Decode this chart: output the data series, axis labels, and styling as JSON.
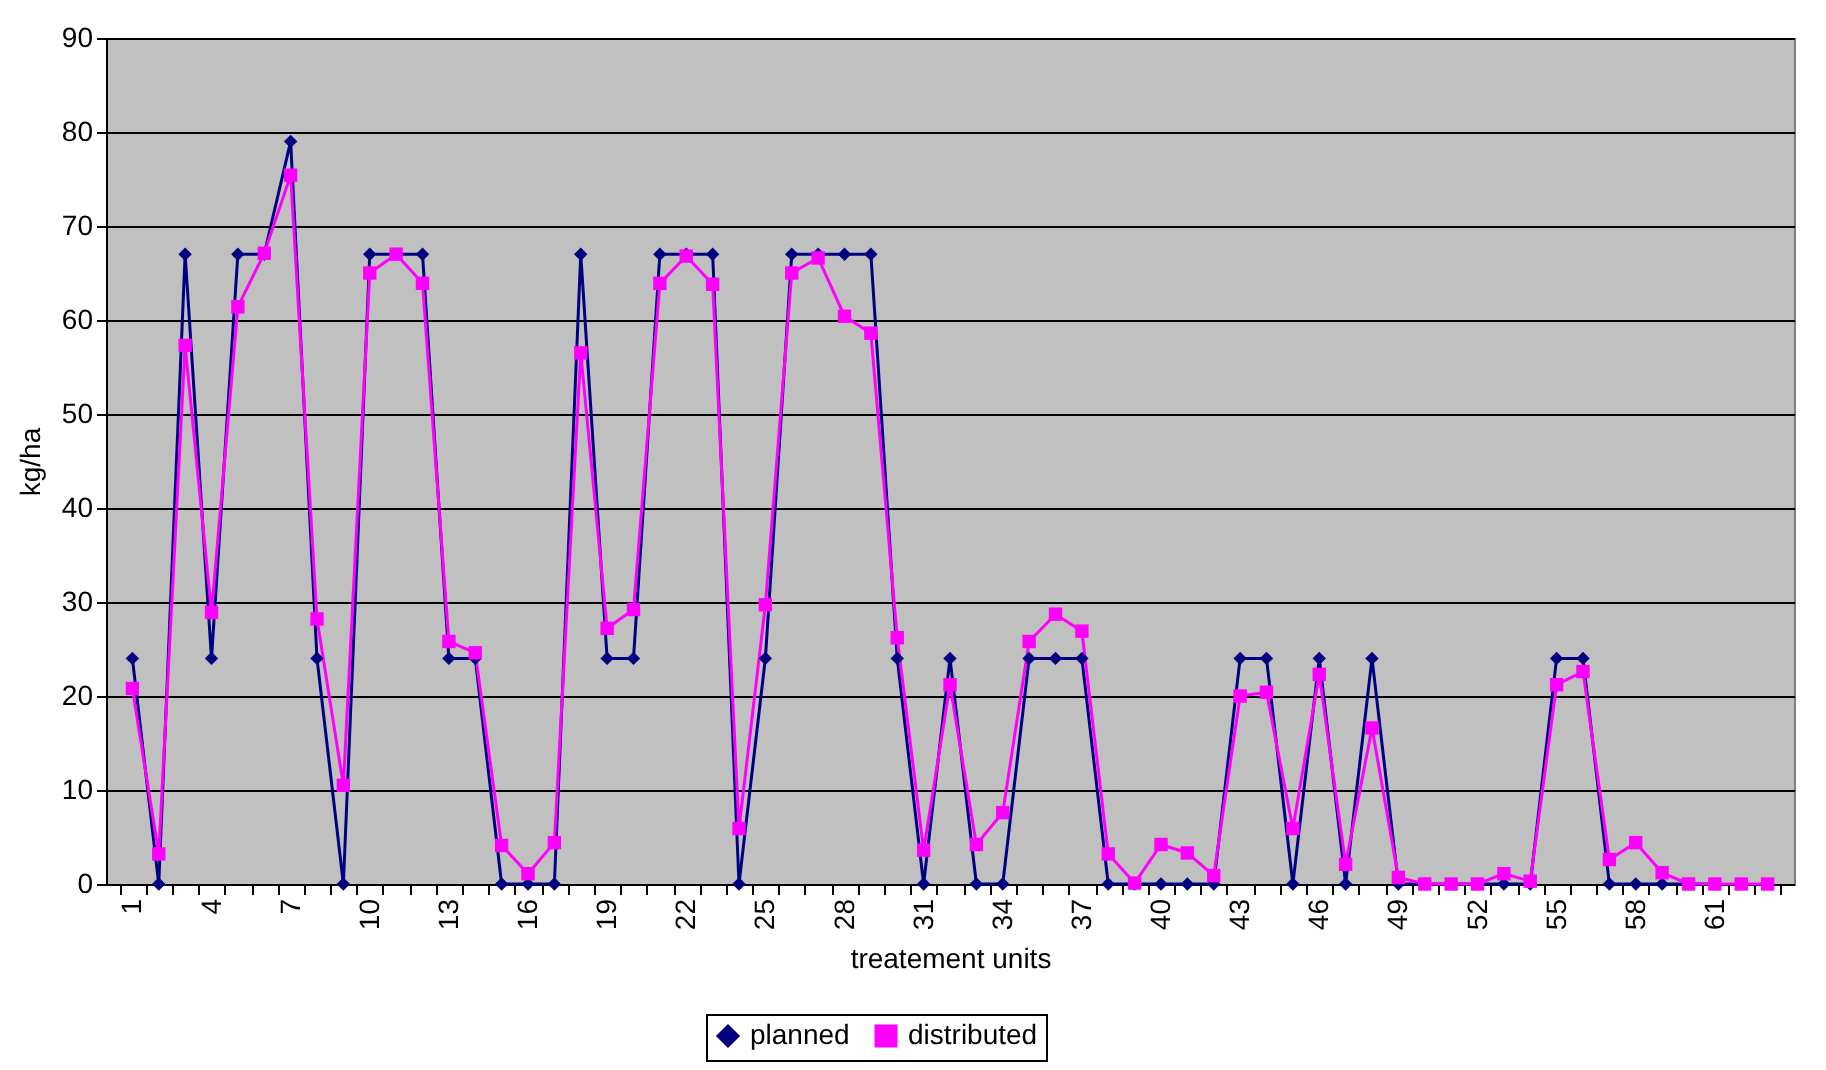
{
  "chart_data": {
    "type": "line",
    "xlabel": "treatement units",
    "ylabel": "kg/ha",
    "categories": [
      "1",
      null,
      null,
      "4",
      null,
      null,
      "7",
      null,
      null,
      "10",
      null,
      null,
      "13",
      null,
      null,
      "16",
      null,
      null,
      "19",
      null,
      null,
      "22",
      null,
      null,
      "25",
      null,
      null,
      "28",
      null,
      null,
      "31",
      null,
      null,
      "34",
      null,
      null,
      "37",
      null,
      null,
      "40",
      null,
      null,
      "43",
      null,
      null,
      "46",
      null,
      null,
      "49",
      null,
      null,
      "52",
      null,
      null,
      "55",
      null,
      null,
      "58",
      null,
      null,
      "61",
      null,
      null
    ],
    "series": [
      {
        "name": "planned",
        "color": "#000080",
        "marker": "diamond",
        "values": [
          24,
          0,
          67,
          24,
          67,
          67,
          79,
          24,
          0,
          67,
          67,
          67,
          24,
          24,
          0,
          0,
          0,
          67,
          24,
          24,
          67,
          67,
          67,
          0,
          24,
          67,
          67,
          67,
          67,
          24,
          0,
          24,
          0,
          0,
          24,
          24,
          24,
          0,
          0,
          0,
          0,
          0,
          24,
          24,
          0,
          24,
          0,
          24,
          0,
          0,
          0,
          0,
          0,
          0,
          24,
          24,
          0,
          0,
          0,
          0,
          0,
          null,
          null
        ]
      },
      {
        "name": "distributed",
        "color": "#ff00ff",
        "marker": "square",
        "values": [
          20.8,
          3.2,
          57.3,
          28.9,
          61.4,
          67.1,
          75.4,
          28.2,
          10.5,
          65,
          67,
          63.9,
          25.8,
          24.6,
          4.1,
          1.1,
          4.4,
          56.5,
          27.2,
          29.2,
          63.9,
          66.8,
          63.8,
          5.9,
          29.7,
          65,
          66.6,
          60.4,
          58.6,
          26.2,
          3.6,
          21.2,
          4.2,
          7.6,
          25.8,
          28.7,
          26.9,
          3.2,
          0.1,
          4.2,
          3.3,
          0.9,
          20,
          20.4,
          5.9,
          22.3,
          2.1,
          16.6,
          0.7,
          0,
          0,
          0,
          1.1,
          0.3,
          21.2,
          22.6,
          2.6,
          4.4,
          1.2,
          0,
          0,
          0,
          0
        ]
      }
    ],
    "ylim": [
      0,
      90
    ],
    "yticks": [
      0,
      10,
      20,
      30,
      40,
      50,
      60,
      70,
      80,
      90
    ],
    "grid": "y",
    "legend": "bottom"
  }
}
